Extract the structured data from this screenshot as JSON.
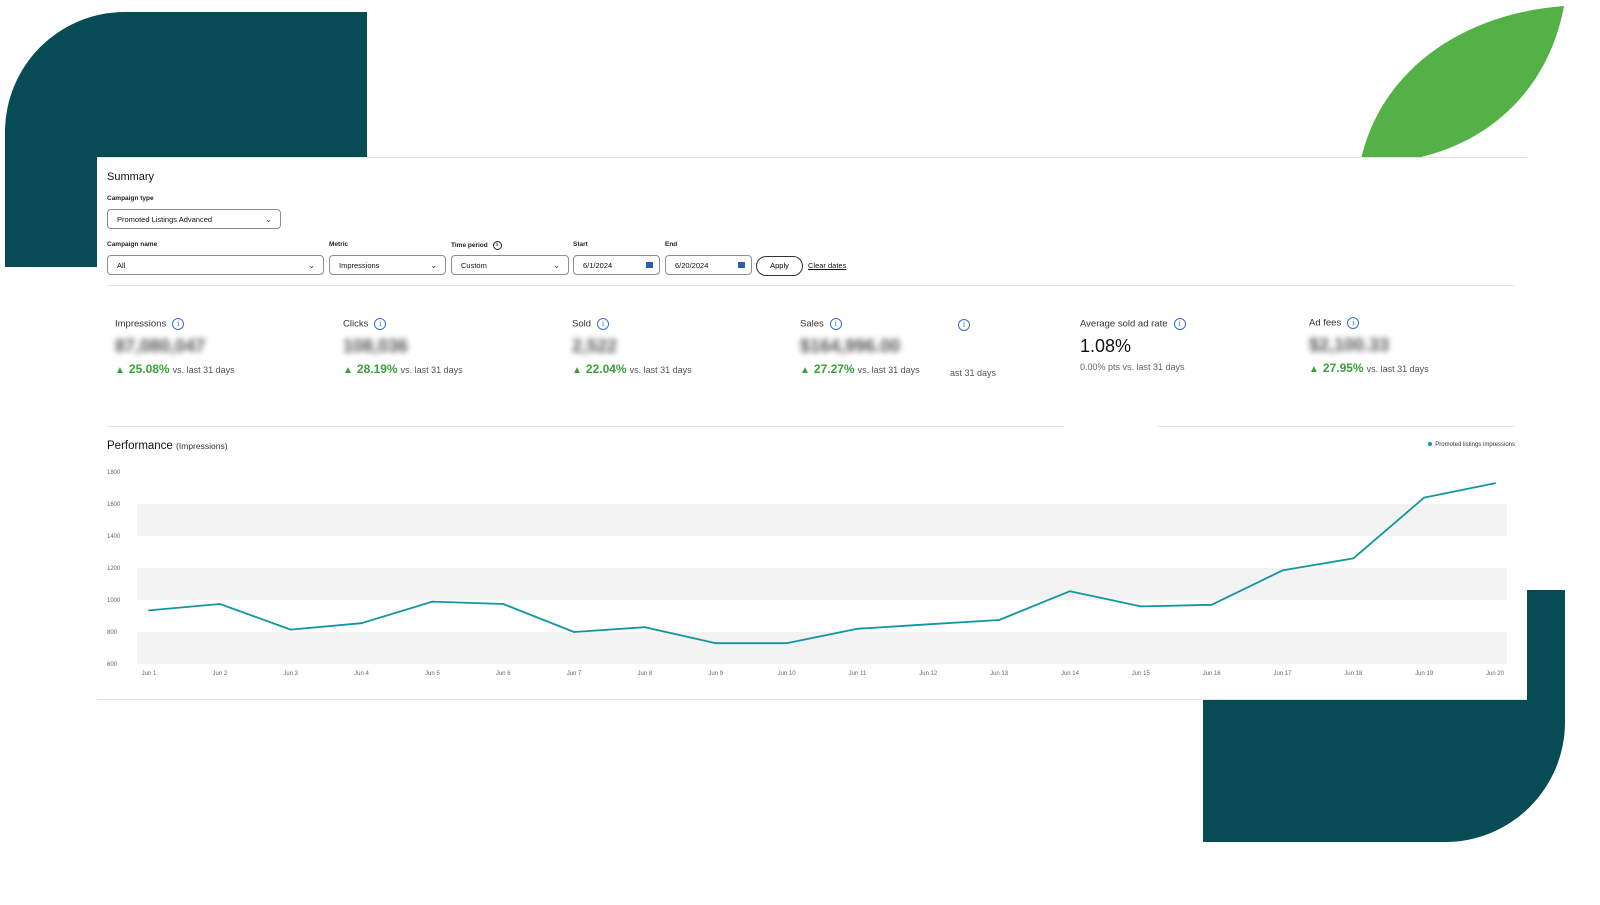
{
  "summary": {
    "title": "Summary",
    "campaign_type": {
      "label": "Campaign type",
      "value": "Promoted Listings Advanced"
    },
    "campaign_name": {
      "label": "Campaign name",
      "value": "All"
    },
    "metric": {
      "label": "Metric",
      "value": "Impressions"
    },
    "time_period": {
      "label": "Time period",
      "value": "Custom"
    },
    "start": {
      "label": "Start",
      "value": "6/1/2024"
    },
    "end": {
      "label": "End",
      "value": "6/20/2024"
    },
    "apply_label": "Apply",
    "clear_label": "Clear dates"
  },
  "metrics": [
    {
      "label": "Impressions",
      "value": "87,080,047",
      "change": "25.08%",
      "suffix": "vs. last 31 days"
    },
    {
      "label": "Clicks",
      "value": "108,036",
      "change": "28.19%",
      "suffix": "vs. last 31 days"
    },
    {
      "label": "Sold",
      "value": "2,522",
      "change": "22.04%",
      "suffix": "vs. last 31 days"
    },
    {
      "label": "Sales",
      "value": "$164,996.00",
      "change": "27.27%",
      "suffix": "vs. last 31 days"
    },
    {
      "label": "Average sold ad rate",
      "value": "1.08%",
      "note": "0.00% pts vs. last 31 days"
    },
    {
      "label": "Ad fees",
      "value": "$2,100.33",
      "change": "27.95%",
      "suffix": "vs. last 31 days"
    }
  ],
  "stray_text": "ast 31 days",
  "performance": {
    "title": "Performance",
    "subtitle": "(Impressions)",
    "legend": "Promoted listings impressions"
  },
  "colors": {
    "line": "#13969c",
    "positive": "#3aa03a",
    "teal": "#074b55",
    "leaf": "#53b147"
  },
  "chart_data": {
    "type": "line",
    "x": [
      "Jun 1",
      "Jun 2",
      "Jun 3",
      "Jun 4",
      "Jun 5",
      "Jun 6",
      "Jun 7",
      "Jun 8",
      "Jun 9",
      "Jun 10",
      "Jun 11",
      "Jun 12",
      "Jun 13",
      "Jun 14",
      "Jun 15",
      "Jun 16",
      "Jun 17",
      "Jun 18",
      "Jun 19",
      "Jun 20"
    ],
    "series": [
      {
        "name": "Promoted listings impressions",
        "values": [
          935,
          975,
          815,
          855,
          990,
          975,
          800,
          830,
          730,
          730,
          820,
          848,
          875,
          1055,
          960,
          970,
          1185,
          1260,
          1640,
          1730
        ]
      }
    ],
    "yticks": [
      600,
      800,
      1000,
      1200,
      1400,
      1600,
      1800
    ],
    "ylim": [
      600,
      1800
    ],
    "grid": "alternating bands"
  }
}
